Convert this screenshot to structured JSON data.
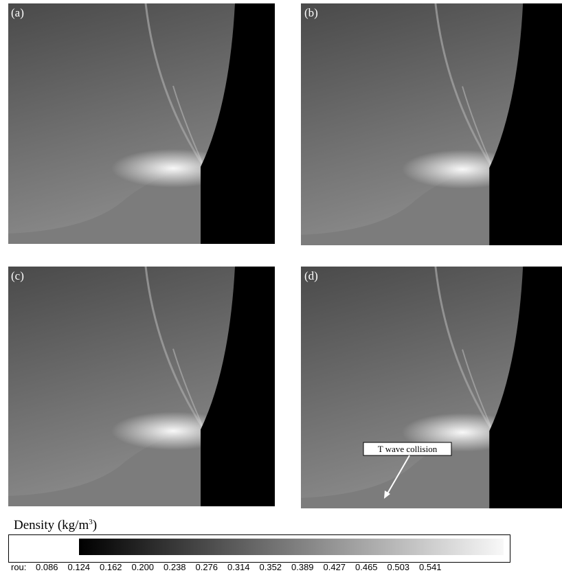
{
  "panels": [
    {
      "label": "(a)"
    },
    {
      "label": "(b)"
    },
    {
      "label": "(c)"
    },
    {
      "label": "(d)",
      "annotation": "T wave collision"
    }
  ],
  "colorbar": {
    "title": "Density (kg/m",
    "title_sup": "3",
    "title_end": ")",
    "variable": "rou:",
    "labels": [
      "0.086",
      "0.124",
      "0.162",
      "0.200",
      "0.238",
      "0.276",
      "0.314",
      "0.352",
      "0.389",
      "0.427",
      "0.465",
      "0.503",
      "0.541"
    ]
  }
}
